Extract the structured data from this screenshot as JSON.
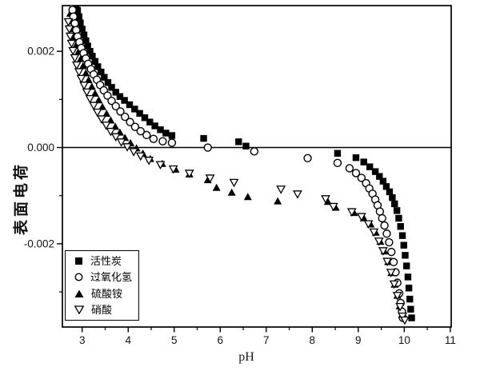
{
  "figure": {
    "background": "#ffffff",
    "ink_color": "#000000"
  },
  "chart_data": {
    "type": "scatter",
    "title": "",
    "xlabel": "pH",
    "ylabel": "表面电荷",
    "xlim": [
      2.57,
      11.02
    ],
    "ylim": [
      -0.00373,
      0.00295
    ],
    "grid": false,
    "zero_line": true,
    "legend_position": "bottom-left",
    "x_major_ticks": [
      3,
      4,
      5,
      6,
      7,
      8,
      9,
      10,
      11
    ],
    "x_minor_ticks": [
      3.5,
      4.5,
      5.5,
      6.5,
      7.5,
      8.5,
      9.5,
      10.5
    ],
    "y_major_ticks": [
      {
        "value": 0.002,
        "label": "0.002"
      },
      {
        "value": 0.0,
        "label": "0.000"
      },
      {
        "value": -0.002,
        "label": "-0.002"
      }
    ],
    "y_minor_ticks": [
      0.001,
      -0.001,
      -0.003
    ],
    "series": [
      {
        "id": "activated-carbon",
        "name": "活性炭",
        "marker": "filled-square",
        "points": [
          [
            2.87,
            0.00298
          ],
          [
            2.9,
            0.00285
          ],
          [
            2.93,
            0.00272
          ],
          [
            2.96,
            0.00259
          ],
          [
            3.0,
            0.00246
          ],
          [
            3.04,
            0.00234
          ],
          [
            3.08,
            0.00222
          ],
          [
            3.12,
            0.00211
          ],
          [
            3.17,
            0.002
          ],
          [
            3.22,
            0.0019
          ],
          [
            3.28,
            0.00179
          ],
          [
            3.34,
            0.00168
          ],
          [
            3.41,
            0.00157
          ],
          [
            3.48,
            0.00146
          ],
          [
            3.56,
            0.00135
          ],
          [
            3.64,
            0.00125
          ],
          [
            3.73,
            0.00115
          ],
          [
            3.82,
            0.00106
          ],
          [
            3.92,
            0.00098
          ],
          [
            4.03,
            0.00089
          ],
          [
            4.14,
            0.0008
          ],
          [
            4.25,
            0.00071
          ],
          [
            4.36,
            0.00062
          ],
          [
            4.47,
            0.00053
          ],
          [
            4.58,
            0.00045
          ],
          [
            4.7,
            0.00037
          ],
          [
            4.82,
            0.0003
          ],
          [
            4.95,
            0.00025
          ],
          [
            5.64,
            0.00019
          ],
          [
            6.4,
            0.00012
          ],
          [
            6.56,
            3e-05
          ],
          [
            8.55,
            -0.00012
          ],
          [
            8.95,
            -0.00021
          ],
          [
            9.12,
            -0.0003
          ],
          [
            9.25,
            -0.0004
          ],
          [
            9.37,
            -0.0005
          ],
          [
            9.46,
            -0.0006
          ],
          [
            9.54,
            -0.0007
          ],
          [
            9.61,
            -0.00081
          ],
          [
            9.68,
            -0.00092
          ],
          [
            9.74,
            -0.00104
          ],
          [
            9.79,
            -0.00117
          ],
          [
            9.84,
            -0.00131
          ],
          [
            9.88,
            -0.00147
          ],
          [
            9.92,
            -0.00164
          ],
          [
            9.96,
            -0.00183
          ],
          [
            9.99,
            -0.00203
          ],
          [
            10.02,
            -0.00224
          ],
          [
            10.05,
            -0.00246
          ],
          [
            10.08,
            -0.00269
          ],
          [
            10.1,
            -0.00292
          ],
          [
            10.12,
            -0.00315
          ],
          [
            10.14,
            -0.00336
          ],
          [
            10.16,
            -0.00354
          ]
        ]
      },
      {
        "id": "hydrogen-peroxide",
        "name": "过氧化氢",
        "marker": "open-circle",
        "points": [
          [
            2.77,
            0.003
          ],
          [
            2.79,
            0.00286
          ],
          [
            2.81,
            0.00272
          ],
          [
            2.84,
            0.00258
          ],
          [
            2.87,
            0.00244
          ],
          [
            2.9,
            0.00231
          ],
          [
            2.94,
            0.00219
          ],
          [
            2.98,
            0.00207
          ],
          [
            3.03,
            0.00196
          ],
          [
            3.08,
            0.00185
          ],
          [
            3.13,
            0.00174
          ],
          [
            3.19,
            0.00163
          ],
          [
            3.25,
            0.00152
          ],
          [
            3.32,
            0.00141
          ],
          [
            3.39,
            0.0013
          ],
          [
            3.47,
            0.00119
          ],
          [
            3.55,
            0.00108
          ],
          [
            3.64,
            0.00097
          ],
          [
            3.73,
            0.00086
          ],
          [
            3.83,
            0.00075
          ],
          [
            3.93,
            0.00064
          ],
          [
            4.04,
            0.00053
          ],
          [
            4.15,
            0.00043
          ],
          [
            4.27,
            0.00034
          ],
          [
            4.4,
            0.00026
          ],
          [
            4.55,
            0.00018
          ],
          [
            4.75,
            0.00013
          ],
          [
            4.95,
            0.0001
          ],
          [
            5.73,
            0.0
          ],
          [
            6.74,
            -8e-05
          ],
          [
            7.9,
            -0.00022
          ],
          [
            8.55,
            -0.00032
          ],
          [
            8.81,
            -0.00043
          ],
          [
            8.95,
            -0.00053
          ],
          [
            9.07,
            -0.00063
          ],
          [
            9.17,
            -0.00074
          ],
          [
            9.24,
            -0.00085
          ],
          [
            9.31,
            -0.00096
          ],
          [
            9.37,
            -0.00108
          ],
          [
            9.42,
            -0.0012
          ],
          [
            9.47,
            -0.00133
          ],
          [
            9.52,
            -0.00147
          ],
          [
            9.57,
            -0.00162
          ],
          [
            9.62,
            -0.00179
          ],
          [
            9.67,
            -0.00197
          ],
          [
            9.72,
            -0.00217
          ],
          [
            9.77,
            -0.00238
          ],
          [
            9.81,
            -0.00259
          ],
          [
            9.85,
            -0.00281
          ],
          [
            9.89,
            -0.00303
          ],
          [
            9.92,
            -0.00323
          ],
          [
            9.95,
            -0.00341
          ],
          [
            9.97,
            -0.00354
          ]
        ]
      },
      {
        "id": "ammonium-sulfate",
        "name": "硫酸铵",
        "marker": "filled-triangle-up",
        "points": [
          [
            2.74,
            0.00278
          ],
          [
            2.77,
            0.00262
          ],
          [
            2.8,
            0.00246
          ],
          [
            2.84,
            0.0023
          ],
          [
            2.88,
            0.00214
          ],
          [
            2.92,
            0.00199
          ],
          [
            2.97,
            0.00184
          ],
          [
            3.02,
            0.00169
          ],
          [
            3.08,
            0.00154
          ],
          [
            3.14,
            0.0014
          ],
          [
            3.21,
            0.00126
          ],
          [
            3.28,
            0.00112
          ],
          [
            3.36,
            0.00098
          ],
          [
            3.44,
            0.00084
          ],
          [
            3.53,
            0.0007
          ],
          [
            3.62,
            0.00056
          ],
          [
            3.72,
            0.00043
          ],
          [
            3.82,
            0.00031
          ],
          [
            3.93,
            0.0002
          ],
          [
            4.05,
            9e-05
          ],
          [
            4.18,
            -2e-05
          ],
          [
            4.32,
            -0.00013
          ],
          [
            4.48,
            -0.00024
          ],
          [
            4.74,
            -0.00034
          ],
          [
            5.03,
            -0.00046
          ],
          [
            5.33,
            -0.00056
          ],
          [
            5.73,
            -0.00068
          ],
          [
            5.92,
            -0.00084
          ],
          [
            6.25,
            -0.00094
          ],
          [
            6.6,
            -0.00103
          ],
          [
            7.25,
            -0.00112
          ],
          [
            8.34,
            -0.00113
          ],
          [
            8.51,
            -0.00125
          ],
          [
            8.91,
            -0.00136
          ],
          [
            9.12,
            -0.00147
          ],
          [
            9.27,
            -0.0016
          ],
          [
            9.38,
            -0.00177
          ],
          [
            9.48,
            -0.00196
          ],
          [
            9.57,
            -0.00216
          ],
          [
            9.65,
            -0.00238
          ],
          [
            9.72,
            -0.00261
          ],
          [
            9.79,
            -0.00285
          ],
          [
            9.85,
            -0.00308
          ],
          [
            9.9,
            -0.0033
          ],
          [
            9.95,
            -0.00348
          ]
        ]
      },
      {
        "id": "nitric-acid",
        "name": "硝酸",
        "marker": "open-triangle-down",
        "points": [
          [
            2.7,
            0.00262
          ],
          [
            2.72,
            0.00247
          ],
          [
            2.74,
            0.00232
          ],
          [
            2.77,
            0.00217
          ],
          [
            2.8,
            0.00202
          ],
          [
            2.84,
            0.00187
          ],
          [
            2.88,
            0.00172
          ],
          [
            2.93,
            0.00158
          ],
          [
            2.98,
            0.00144
          ],
          [
            3.04,
            0.0013
          ],
          [
            3.1,
            0.00116
          ],
          [
            3.17,
            0.00102
          ],
          [
            3.25,
            0.00088
          ],
          [
            3.33,
            0.00074
          ],
          [
            3.42,
            0.0006
          ],
          [
            3.52,
            0.00047
          ],
          [
            3.62,
            0.00034
          ],
          [
            3.73,
            0.00023
          ],
          [
            3.85,
            0.00012
          ],
          [
            3.98,
            2e-05
          ],
          [
            4.12,
            -8e-05
          ],
          [
            4.27,
            -0.00017
          ],
          [
            4.45,
            -0.00026
          ],
          [
            4.7,
            -0.00035
          ],
          [
            4.98,
            -0.00044
          ],
          [
            5.33,
            -0.00053
          ],
          [
            5.78,
            -0.00063
          ],
          [
            6.3,
            -0.00072
          ],
          [
            7.32,
            -0.00086
          ],
          [
            7.68,
            -0.00096
          ],
          [
            8.29,
            -0.00106
          ],
          [
            8.46,
            -0.00122
          ],
          [
            8.86,
            -0.00133
          ],
          [
            9.07,
            -0.00143
          ],
          [
            9.22,
            -0.00158
          ],
          [
            9.34,
            -0.00175
          ],
          [
            9.45,
            -0.00194
          ],
          [
            9.54,
            -0.00214
          ],
          [
            9.63,
            -0.00236
          ],
          [
            9.71,
            -0.00259
          ],
          [
            9.78,
            -0.00283
          ],
          [
            9.85,
            -0.00307
          ],
          [
            9.91,
            -0.0033
          ],
          [
            9.96,
            -0.0035
          ],
          [
            10.01,
            -0.00358
          ]
        ]
      }
    ]
  }
}
